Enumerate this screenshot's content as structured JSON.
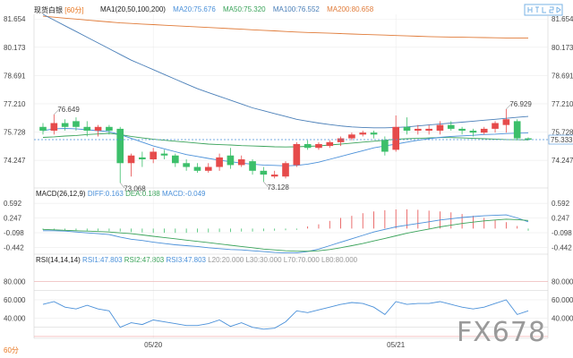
{
  "header": {
    "title": "现货白银",
    "period": "60分",
    "ma_label": "MA1(20,50,100,200)",
    "ma20": "MA20:75.676",
    "ma50": "MA50:75.320",
    "ma100": "MA100:76.552",
    "ma200": "MA200:80.658"
  },
  "watermark": "FX678",
  "bottom_period": "60分",
  "colors": {
    "up": "#e64b4b",
    "down": "#3cbf6a",
    "ma20": "#4a90d9",
    "ma50": "#3aa35a",
    "ma100": "#4a7fb8",
    "ma200": "#e07b39",
    "last_price": "#4a90d9"
  },
  "chart_data": [
    {
      "type": "candlestick",
      "y_ticks": [
        81.654,
        80.173,
        78.691,
        77.21,
        75.728,
        74.247
      ],
      "ylim": [
        72.8,
        81.9
      ],
      "last_price": 75.333,
      "annotations": [
        {
          "label": "76.649",
          "x_index": 1,
          "value": 76.649
        },
        {
          "label": "73.068",
          "x_index": 7,
          "value": 73.068
        },
        {
          "label": "73.128",
          "x_index": 20,
          "value": 73.128
        },
        {
          "label": "76.929",
          "x_index": 42,
          "value": 76.929
        }
      ],
      "x_labels": [
        {
          "label": "05/20",
          "x_index": 10
        },
        {
          "label": "05/21",
          "x_index": 32
        }
      ],
      "candles": [
        {
          "o": 76.0,
          "h": 76.2,
          "l": 75.6,
          "c": 75.8
        },
        {
          "o": 75.8,
          "h": 76.65,
          "l": 75.6,
          "c": 76.2
        },
        {
          "o": 76.2,
          "h": 76.4,
          "l": 75.8,
          "c": 76.0
        },
        {
          "o": 76.3,
          "h": 76.5,
          "l": 75.8,
          "c": 76.0
        },
        {
          "o": 76.0,
          "h": 76.3,
          "l": 75.5,
          "c": 75.8
        },
        {
          "o": 75.8,
          "h": 76.1,
          "l": 75.5,
          "c": 76.0
        },
        {
          "o": 76.0,
          "h": 76.1,
          "l": 75.6,
          "c": 75.8
        },
        {
          "o": 75.9,
          "h": 76.0,
          "l": 73.07,
          "c": 74.1
        },
        {
          "o": 74.1,
          "h": 74.6,
          "l": 73.4,
          "c": 74.5
        },
        {
          "o": 74.4,
          "h": 74.7,
          "l": 73.9,
          "c": 74.3
        },
        {
          "o": 74.3,
          "h": 74.9,
          "l": 74.1,
          "c": 74.7
        },
        {
          "o": 74.6,
          "h": 74.8,
          "l": 74.3,
          "c": 74.5
        },
        {
          "o": 74.5,
          "h": 74.6,
          "l": 73.9,
          "c": 74.1
        },
        {
          "o": 74.1,
          "h": 74.3,
          "l": 73.7,
          "c": 73.9
        },
        {
          "o": 73.9,
          "h": 74.1,
          "l": 73.6,
          "c": 73.7
        },
        {
          "o": 73.7,
          "h": 74.1,
          "l": 73.6,
          "c": 73.9
        },
        {
          "o": 73.9,
          "h": 74.6,
          "l": 73.7,
          "c": 74.4
        },
        {
          "o": 74.5,
          "h": 74.9,
          "l": 73.8,
          "c": 74.0
        },
        {
          "o": 74.0,
          "h": 74.5,
          "l": 73.9,
          "c": 74.3
        },
        {
          "o": 74.2,
          "h": 74.3,
          "l": 73.5,
          "c": 73.7
        },
        {
          "o": 73.7,
          "h": 73.9,
          "l": 73.13,
          "c": 73.5
        },
        {
          "o": 73.4,
          "h": 73.7,
          "l": 73.3,
          "c": 73.5
        },
        {
          "o": 73.4,
          "h": 74.2,
          "l": 73.3,
          "c": 74.1
        },
        {
          "o": 74.0,
          "h": 75.2,
          "l": 73.9,
          "c": 75.1
        },
        {
          "o": 75.1,
          "h": 75.3,
          "l": 74.8,
          "c": 74.9
        },
        {
          "o": 74.9,
          "h": 75.2,
          "l": 74.8,
          "c": 75.1
        },
        {
          "o": 75.0,
          "h": 75.3,
          "l": 74.9,
          "c": 75.2
        },
        {
          "o": 75.2,
          "h": 75.5,
          "l": 75.0,
          "c": 75.4
        },
        {
          "o": 75.4,
          "h": 75.7,
          "l": 75.3,
          "c": 75.6
        },
        {
          "o": 75.6,
          "h": 75.8,
          "l": 75.5,
          "c": 75.7
        },
        {
          "o": 75.7,
          "h": 75.8,
          "l": 75.4,
          "c": 75.6
        },
        {
          "o": 75.3,
          "h": 75.5,
          "l": 74.5,
          "c": 74.7
        },
        {
          "o": 74.8,
          "h": 76.6,
          "l": 74.7,
          "c": 76.0
        },
        {
          "o": 76.0,
          "h": 76.5,
          "l": 75.6,
          "c": 75.8
        },
        {
          "o": 75.8,
          "h": 76.1,
          "l": 75.6,
          "c": 75.9
        },
        {
          "o": 75.8,
          "h": 76.1,
          "l": 75.6,
          "c": 75.9
        },
        {
          "o": 75.8,
          "h": 76.3,
          "l": 75.6,
          "c": 76.1
        },
        {
          "o": 76.1,
          "h": 76.3,
          "l": 75.8,
          "c": 75.9
        },
        {
          "o": 75.9,
          "h": 76.0,
          "l": 75.6,
          "c": 75.8
        },
        {
          "o": 75.8,
          "h": 75.9,
          "l": 75.5,
          "c": 75.7
        },
        {
          "o": 75.7,
          "h": 76.0,
          "l": 75.6,
          "c": 75.9
        },
        {
          "o": 75.9,
          "h": 76.3,
          "l": 75.7,
          "c": 76.2
        },
        {
          "o": 76.1,
          "h": 76.93,
          "l": 75.7,
          "c": 76.4
        },
        {
          "o": 76.3,
          "h": 76.4,
          "l": 75.3,
          "c": 75.4
        },
        {
          "o": 75.4,
          "h": 75.45,
          "l": 75.3,
          "c": 75.33
        }
      ],
      "ma_lines": {
        "MA200": [
          81.8,
          81.75,
          81.7,
          81.65,
          81.6,
          81.55,
          81.5,
          81.45,
          81.42,
          81.39,
          81.36,
          81.33,
          81.3,
          81.27,
          81.24,
          81.21,
          81.18,
          81.15,
          81.12,
          81.09,
          81.06,
          81.03,
          81.0,
          80.97,
          80.95,
          80.93,
          80.91,
          80.89,
          80.87,
          80.85,
          80.83,
          80.81,
          80.79,
          80.77,
          80.75,
          80.73,
          80.72,
          80.71,
          80.7,
          80.69,
          80.68,
          80.67,
          80.66,
          80.66,
          80.65
        ],
        "MA100": [
          81.9,
          81.6,
          81.3,
          81.0,
          80.7,
          80.4,
          80.1,
          79.8,
          79.5,
          79.25,
          79.0,
          78.75,
          78.5,
          78.25,
          78.0,
          77.8,
          77.6,
          77.4,
          77.2,
          77.0,
          76.85,
          76.7,
          76.55,
          76.4,
          76.3,
          76.2,
          76.12,
          76.05,
          76.0,
          75.97,
          75.95,
          75.95,
          75.97,
          76.0,
          76.05,
          76.1,
          76.15,
          76.2,
          76.25,
          76.3,
          76.35,
          76.4,
          76.45,
          76.5,
          76.55
        ],
        "MA50": [
          75.45,
          75.48,
          75.52,
          75.55,
          75.6,
          75.63,
          75.66,
          75.6,
          75.5,
          75.42,
          75.35,
          75.3,
          75.25,
          75.2,
          75.15,
          75.1,
          75.07,
          75.05,
          75.02,
          75.0,
          74.98,
          74.96,
          74.95,
          74.96,
          74.98,
          75.0,
          75.05,
          75.1,
          75.15,
          75.2,
          75.25,
          75.3,
          75.35,
          75.38,
          75.4,
          75.42,
          75.44,
          75.44,
          75.42,
          75.4,
          75.38,
          75.36,
          75.34,
          75.33,
          75.32
        ],
        "MA20": [
          75.8,
          75.9,
          75.92,
          75.9,
          75.85,
          75.8,
          75.75,
          75.6,
          75.4,
          75.2,
          75.0,
          74.85,
          74.7,
          74.55,
          74.45,
          74.35,
          74.25,
          74.18,
          74.1,
          74.05,
          74.0,
          73.98,
          73.96,
          73.98,
          74.05,
          74.15,
          74.3,
          74.45,
          74.6,
          74.75,
          74.9,
          75.0,
          75.1,
          75.2,
          75.3,
          75.38,
          75.45,
          75.5,
          75.53,
          75.56,
          75.6,
          75.62,
          75.65,
          75.67,
          75.68
        ]
      }
    },
    {
      "type": "macd",
      "title": "MACD(26,12,9)",
      "diff_label": "DIFF:0.163",
      "dea_label": "DEA:0.188",
      "macd_label": "MACD:-0.049",
      "y_ticks": [
        0.592,
        0.247,
        -0.098,
        -0.442
      ],
      "ylim": [
        -0.6,
        0.7
      ],
      "diff": [
        -0.05,
        -0.05,
        -0.06,
        -0.08,
        -0.1,
        -0.12,
        -0.14,
        -0.2,
        -0.25,
        -0.28,
        -0.32,
        -0.35,
        -0.38,
        -0.4,
        -0.42,
        -0.45,
        -0.47,
        -0.49,
        -0.5,
        -0.52,
        -0.54,
        -0.56,
        -0.57,
        -0.57,
        -0.54,
        -0.48,
        -0.4,
        -0.32,
        -0.24,
        -0.16,
        -0.08,
        -0.02,
        0.04,
        0.08,
        0.12,
        0.16,
        0.2,
        0.23,
        0.26,
        0.28,
        0.3,
        0.31,
        0.32,
        0.25,
        0.16
      ],
      "dea": [
        -0.02,
        -0.03,
        -0.04,
        -0.05,
        -0.06,
        -0.07,
        -0.08,
        -0.1,
        -0.12,
        -0.15,
        -0.18,
        -0.21,
        -0.24,
        -0.27,
        -0.3,
        -0.33,
        -0.36,
        -0.39,
        -0.42,
        -0.45,
        -0.48,
        -0.5,
        -0.52,
        -0.53,
        -0.53,
        -0.52,
        -0.49,
        -0.45,
        -0.4,
        -0.35,
        -0.29,
        -0.23,
        -0.17,
        -0.11,
        -0.06,
        -0.01,
        0.04,
        0.08,
        0.12,
        0.15,
        0.18,
        0.2,
        0.22,
        0.21,
        0.19
      ],
      "hist": [
        -0.03,
        -0.03,
        -0.04,
        -0.04,
        -0.05,
        -0.05,
        -0.06,
        -0.07,
        -0.08,
        -0.09,
        -0.1,
        -0.1,
        -0.1,
        -0.1,
        -0.09,
        -0.09,
        -0.08,
        -0.08,
        -0.07,
        -0.07,
        -0.06,
        -0.05,
        -0.04,
        -0.03,
        0.05,
        0.1,
        0.18,
        0.25,
        0.3,
        0.36,
        0.4,
        0.43,
        0.45,
        0.45,
        0.44,
        0.42,
        0.4,
        0.38,
        0.34,
        0.3,
        0.25,
        0.2,
        0.15,
        0.06,
        -0.05
      ]
    },
    {
      "type": "rsi",
      "title": "RSI(14,14,14)",
      "rsi1_label": "RSI1:47.803",
      "rsi2_label": "RSI2:47.803",
      "rsi3_label": "RSI3:47.803",
      "l20_label": "L20:20.000",
      "l30_label": "L30:30.000",
      "l70_label": "L70:70.000",
      "l80_label": "L80:80.000",
      "y_ticks": [
        80.0,
        60.0,
        40.0
      ],
      "ylim": [
        18,
        100
      ],
      "levels": [
        80,
        70,
        30,
        20
      ],
      "rsi": [
        55,
        58,
        52,
        50,
        54,
        50,
        48,
        30,
        35,
        33,
        38,
        36,
        34,
        32,
        32,
        34,
        38,
        31,
        35,
        30,
        28,
        29,
        36,
        48,
        46,
        49,
        52,
        55,
        57,
        56,
        52,
        44,
        58,
        55,
        56,
        56,
        58,
        55,
        52,
        50,
        52,
        56,
        60,
        44,
        48
      ]
    }
  ]
}
